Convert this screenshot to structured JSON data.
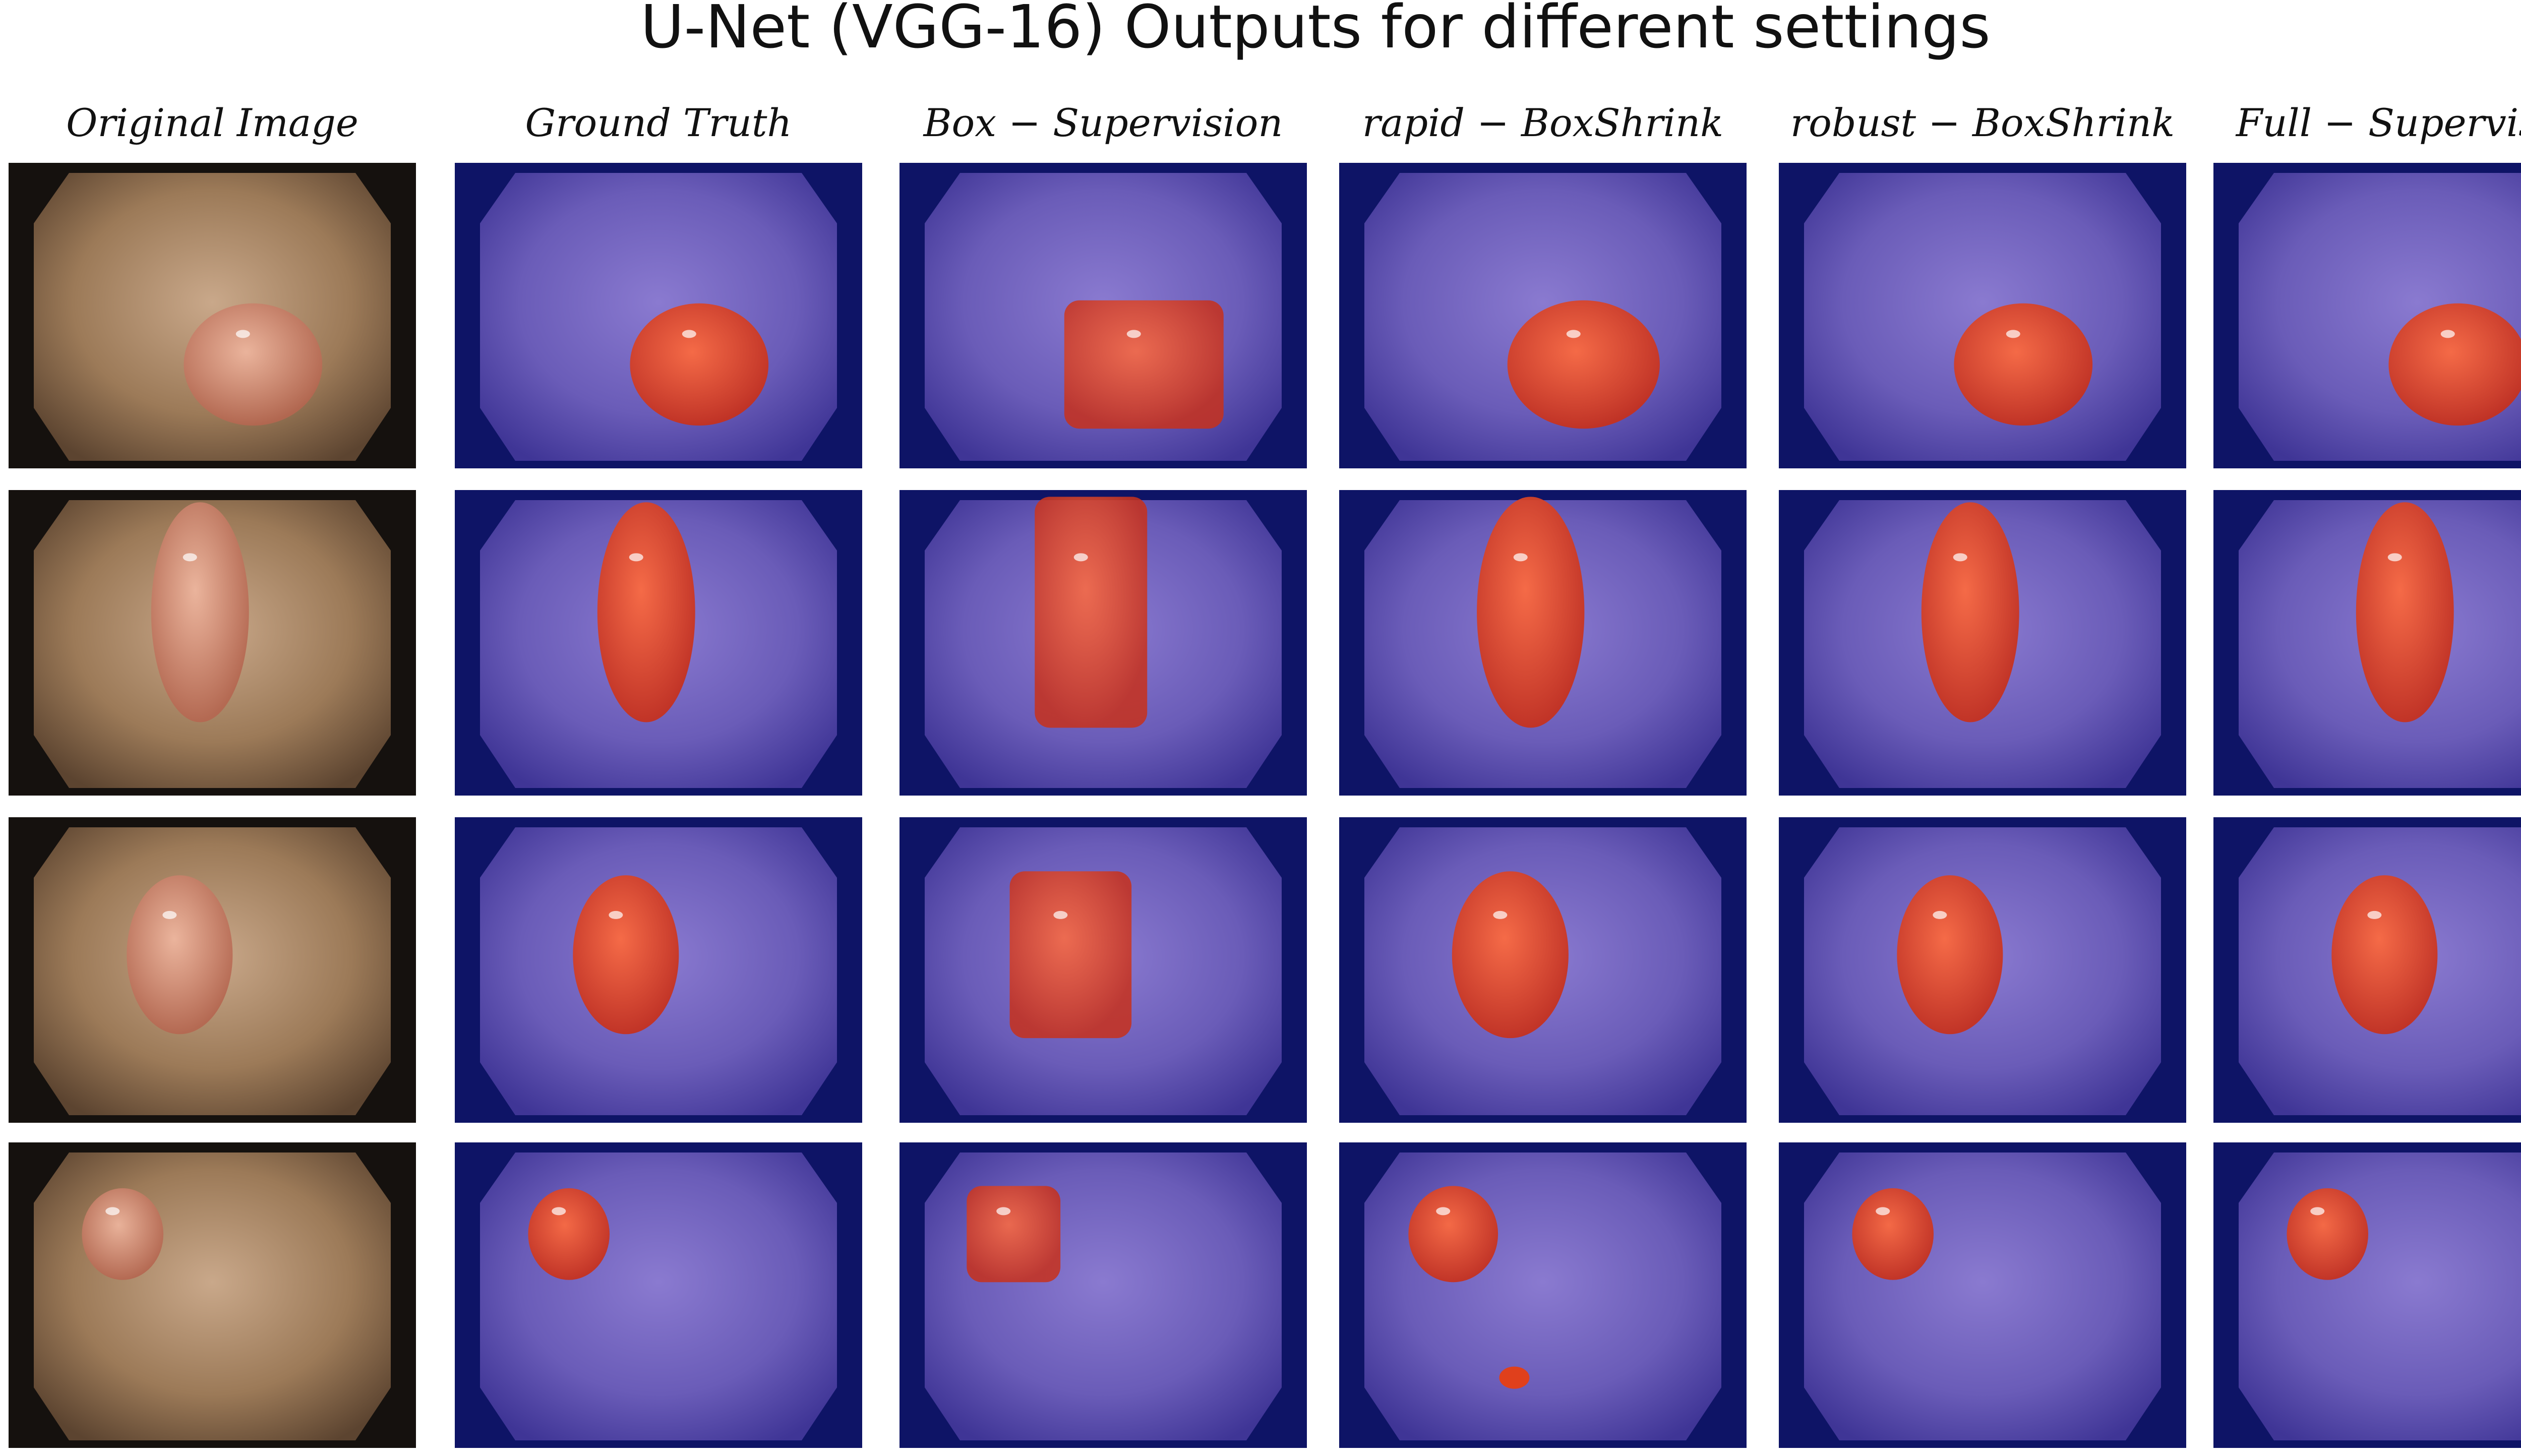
{
  "title": "U-Net (VGG-16) Outputs for different settings",
  "columns": [
    "Original Image",
    "Ground Truth",
    "Box − Supervision",
    "rapid − BoxShrink",
    "robust − BoxShrink",
    "Full − Supervision"
  ]
}
